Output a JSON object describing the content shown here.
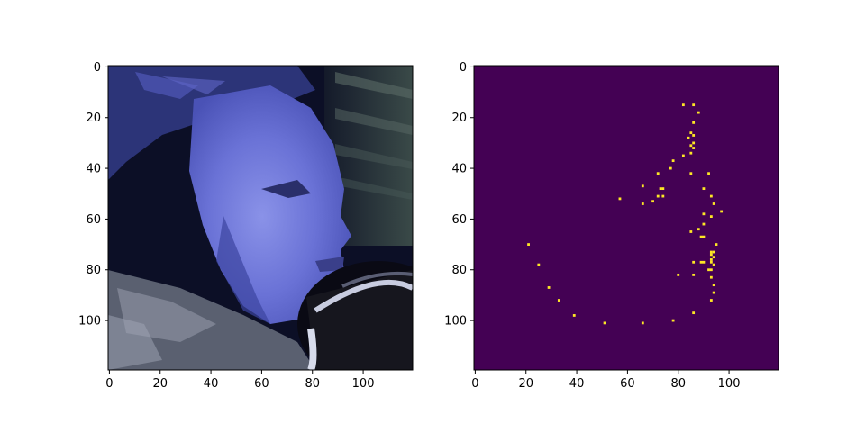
{
  "chart_data": [
    {
      "type": "image",
      "content": "Photograph of a man's face in profile facing right, blue-tinted lighting, dark background with a camera lens in the lower right",
      "x_ticks": [
        "0",
        "20",
        "40",
        "60",
        "80",
        "100"
      ],
      "y_ticks": [
        "0",
        "20",
        "40",
        "60",
        "80",
        "100"
      ],
      "xlim": [
        -0.5,
        119.5
      ],
      "ylim": [
        119.5,
        -0.5
      ]
    },
    {
      "type": "heatmap",
      "colormap": "viridis",
      "background_color": "#440154",
      "point_color": "#fde725",
      "x_ticks": [
        "0",
        "20",
        "40",
        "60",
        "80",
        "100"
      ],
      "y_ticks": [
        "0",
        "20",
        "40",
        "60",
        "80",
        "100"
      ],
      "xlim": [
        -0.5,
        119.5
      ],
      "ylim": [
        119.5,
        -0.5
      ],
      "grid": false,
      "points": [
        [
          82,
          15
        ],
        [
          86,
          15
        ],
        [
          88,
          18
        ],
        [
          86,
          22
        ],
        [
          85,
          26
        ],
        [
          86,
          27
        ],
        [
          84,
          28
        ],
        [
          86,
          30
        ],
        [
          85,
          31
        ],
        [
          86,
          32
        ],
        [
          82,
          35
        ],
        [
          85,
          34
        ],
        [
          78,
          37
        ],
        [
          77,
          40
        ],
        [
          72,
          42
        ],
        [
          85,
          42
        ],
        [
          92,
          42
        ],
        [
          66,
          47
        ],
        [
          73,
          48
        ],
        [
          74,
          48
        ],
        [
          90,
          48
        ],
        [
          57,
          52
        ],
        [
          72,
          51
        ],
        [
          74,
          51
        ],
        [
          93,
          51
        ],
        [
          70,
          53
        ],
        [
          66,
          54
        ],
        [
          94,
          54
        ],
        [
          97,
          57
        ],
        [
          90,
          58
        ],
        [
          93,
          59
        ],
        [
          90,
          62
        ],
        [
          88,
          64
        ],
        [
          85,
          65
        ],
        [
          89,
          67
        ],
        [
          90,
          67
        ],
        [
          95,
          70
        ],
        [
          93,
          73
        ],
        [
          94,
          73
        ],
        [
          93,
          74
        ],
        [
          94,
          75
        ],
        [
          93,
          76
        ],
        [
          86,
          77
        ],
        [
          89,
          77
        ],
        [
          90,
          77
        ],
        [
          93,
          77
        ],
        [
          94,
          78
        ],
        [
          92,
          80
        ],
        [
          93,
          80
        ],
        [
          80,
          82
        ],
        [
          86,
          82
        ],
        [
          93,
          83
        ],
        [
          94,
          86
        ],
        [
          94,
          89
        ],
        [
          93,
          92
        ],
        [
          86,
          97
        ],
        [
          78,
          100
        ],
        [
          66,
          101
        ],
        [
          51,
          101
        ],
        [
          39,
          98
        ],
        [
          33,
          92
        ],
        [
          29,
          87
        ],
        [
          25,
          78
        ],
        [
          21,
          70
        ]
      ]
    }
  ]
}
